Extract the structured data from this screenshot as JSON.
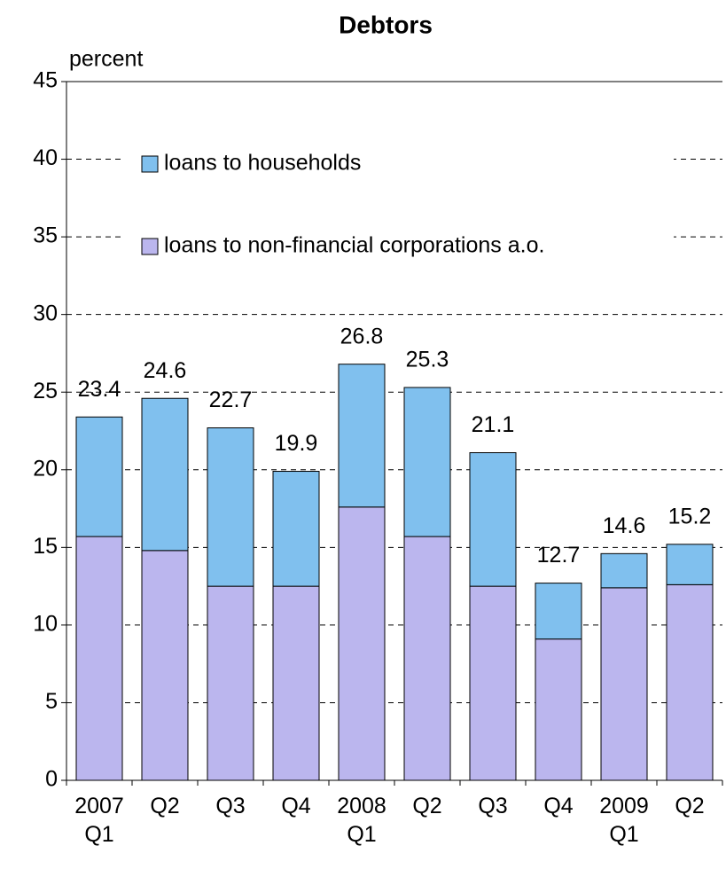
{
  "chart_data": {
    "type": "stacked_bar",
    "title": "Debtors",
    "y_axis_label": "percent",
    "categories": [
      [
        "2007",
        "Q1"
      ],
      [
        "Q2"
      ],
      [
        "Q3"
      ],
      [
        "Q4"
      ],
      [
        "2008",
        "Q1"
      ],
      [
        "Q2"
      ],
      [
        "Q3"
      ],
      [
        "Q4"
      ],
      [
        "2009",
        "Q1"
      ],
      [
        "Q2"
      ]
    ],
    "series": [
      {
        "name": "loans to non-financial corporations a.o.",
        "color": "#bbb6ee",
        "values": [
          15.7,
          14.8,
          12.5,
          12.5,
          17.6,
          15.7,
          12.5,
          9.1,
          12.4,
          12.6
        ]
      },
      {
        "name": "loans to households",
        "color": "#80c0ee",
        "values": [
          7.7,
          9.8,
          10.2,
          7.4,
          9.2,
          9.6,
          8.6,
          3.6,
          2.2,
          2.6
        ]
      }
    ],
    "totals": [
      23.4,
      24.6,
      22.7,
      19.9,
      26.8,
      25.3,
      21.1,
      12.7,
      14.6,
      15.2
    ],
    "ylim": [
      0,
      45
    ],
    "yticks": [
      0,
      5,
      10,
      15,
      20,
      25,
      30,
      35,
      40,
      45
    ],
    "grid": true
  }
}
